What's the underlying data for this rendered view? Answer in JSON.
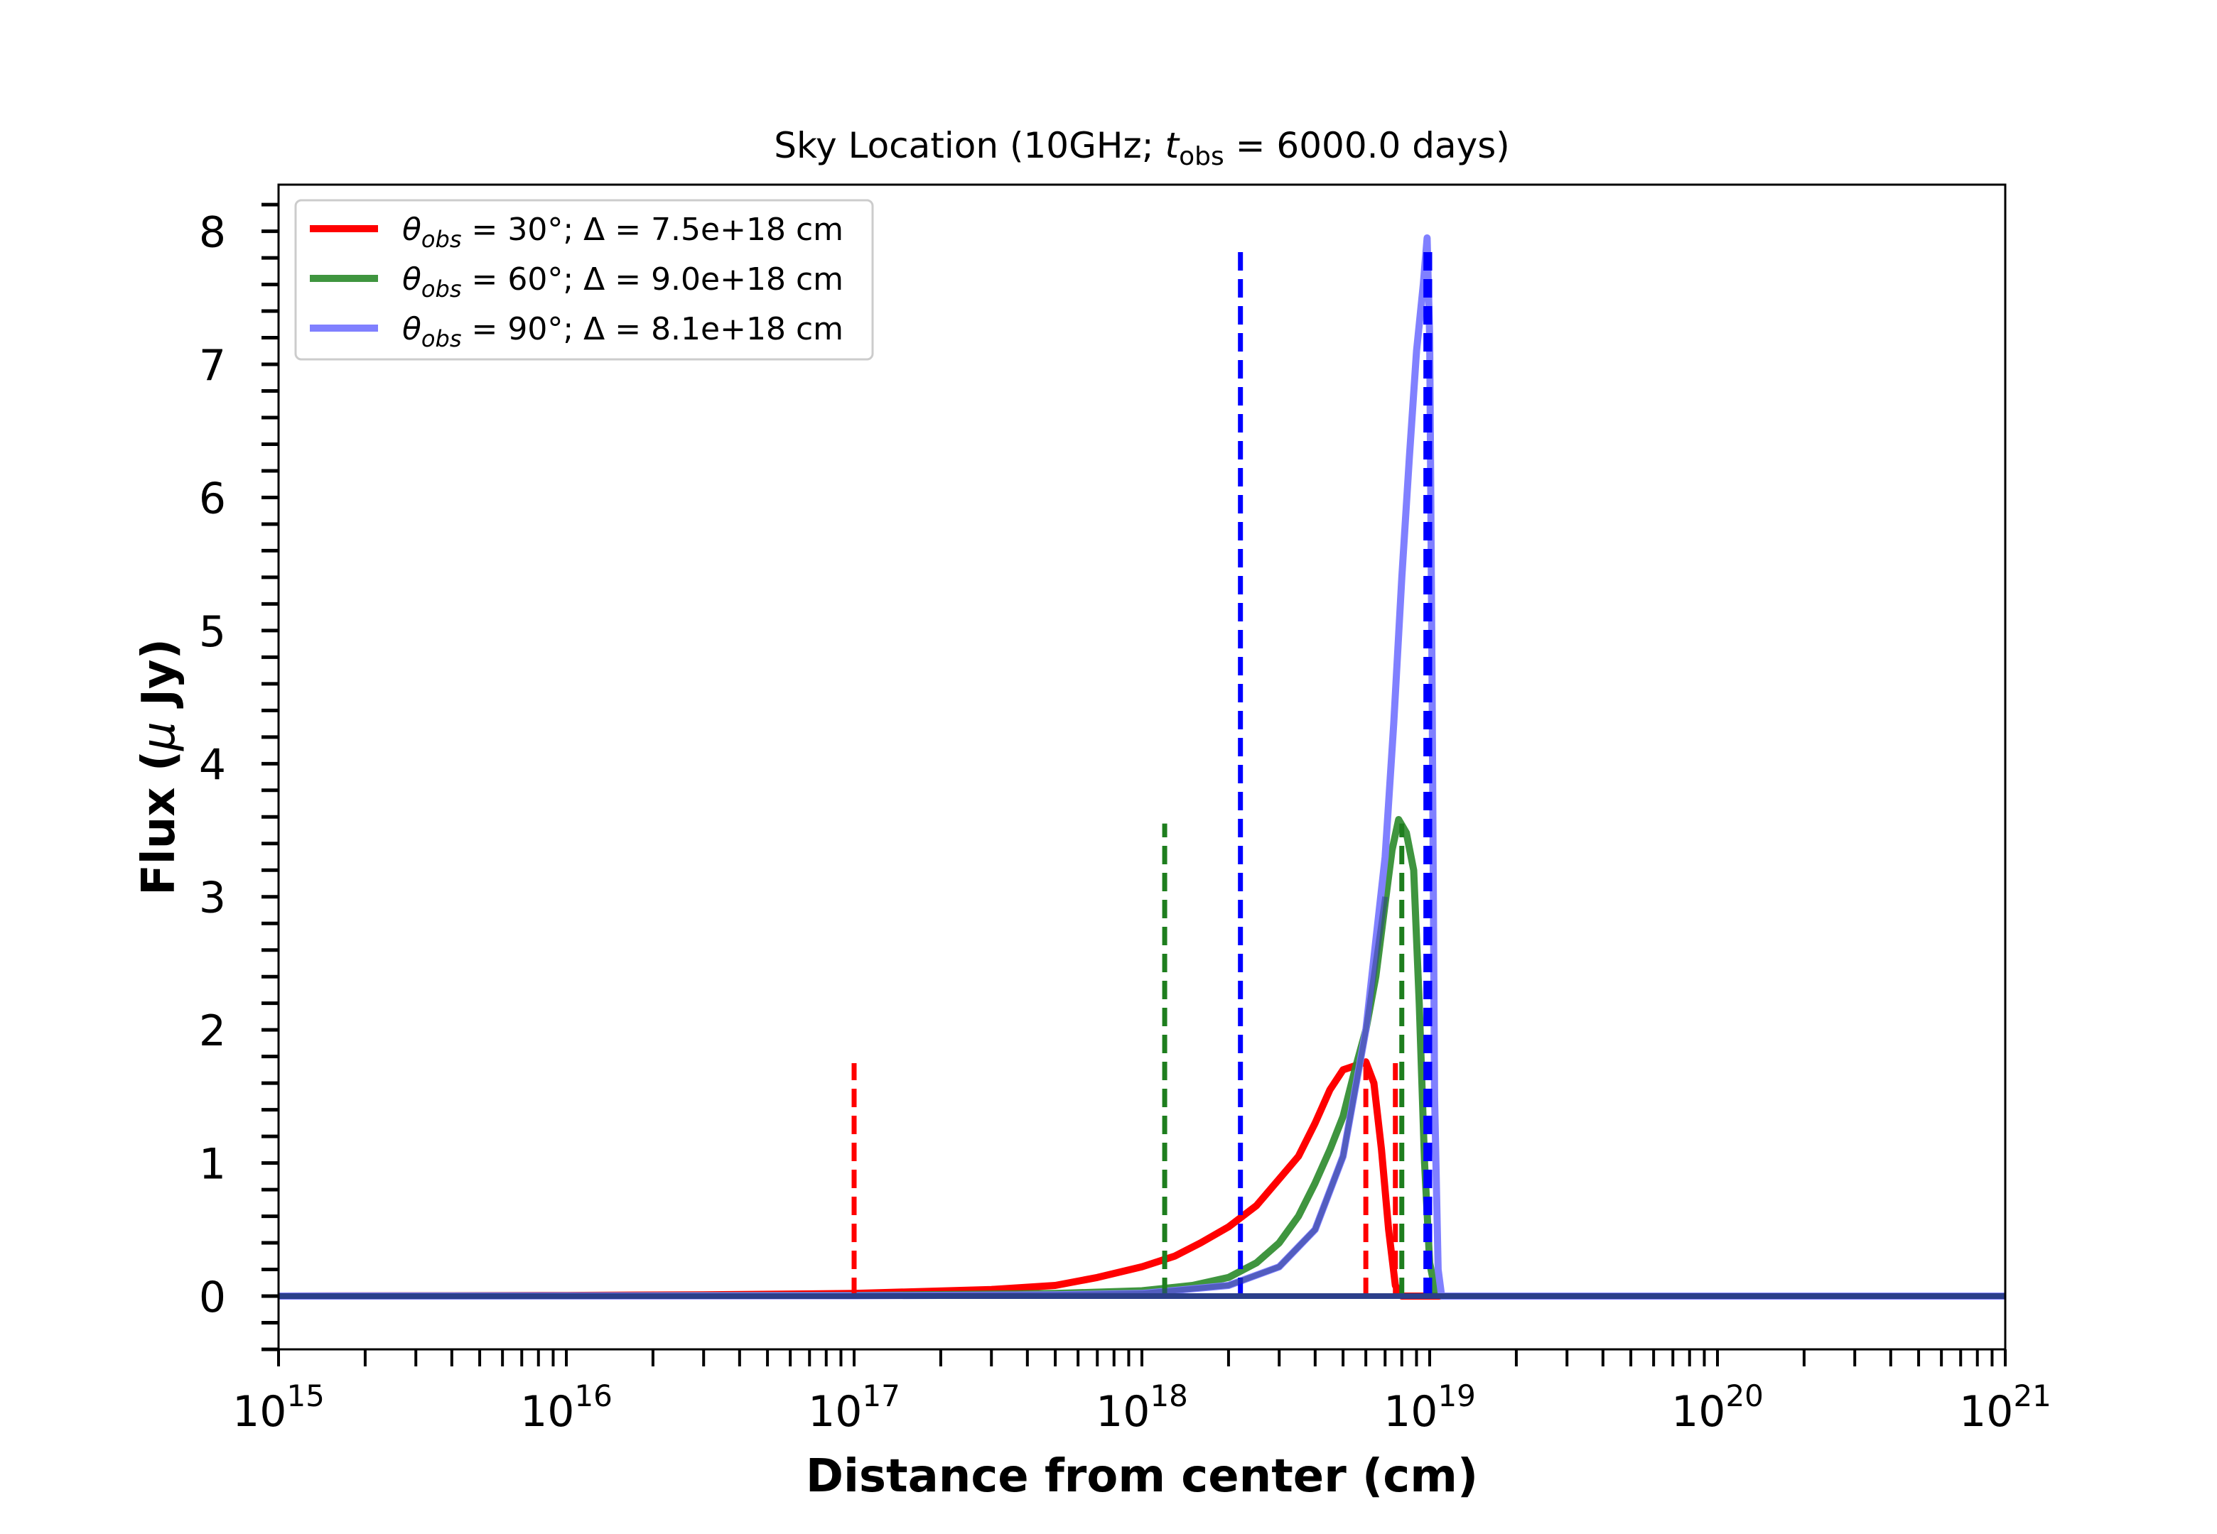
{
  "chart_data": {
    "type": "line",
    "title": "Sky Location (10GHz; t_obs = 6000.0 days)",
    "title_parts": {
      "pre": "Sky Location (10GHz; ",
      "t": "t",
      "sub": "obs",
      "post": " = 6000.0 days)"
    },
    "xlabel": "Distance from center (cm)",
    "ylabel": "Flux (μ Jy)",
    "ylabel_parts": {
      "pre": "Flux (",
      "mu": "μ",
      "post": " Jy)"
    },
    "xscale": "log",
    "xlim": [
      1000000000000000.0,
      1e+21
    ],
    "ylim": [
      -0.4,
      8.35
    ],
    "x_ticks": [
      {
        "value": 1000000000000000.0,
        "base": "10",
        "exp": "15"
      },
      {
        "value": 1e+16,
        "base": "10",
        "exp": "16"
      },
      {
        "value": 1e+17,
        "base": "10",
        "exp": "17"
      },
      {
        "value": 1e+18,
        "base": "10",
        "exp": "18"
      },
      {
        "value": 1e+19,
        "base": "10",
        "exp": "19"
      },
      {
        "value": 1e+20,
        "base": "10",
        "exp": "20"
      },
      {
        "value": 1e+21,
        "base": "10",
        "exp": "21"
      }
    ],
    "y_ticks": [
      "0",
      "1",
      "2",
      "3",
      "4",
      "5",
      "6",
      "7",
      "8"
    ],
    "y_minor_step": 0.2,
    "grid": false,
    "legend_position": "top-left",
    "series": [
      {
        "name": "θ_obs = 30°; Δ = 7.5e+18 cm",
        "legend": {
          "theta": "θ",
          "sub": "obs",
          "rest": " = 30°; Δ = 7.5e+18 cm"
        },
        "color": "#ff0000",
        "opacity": 1.0,
        "points": [
          [
            1000000000000000.0,
            0
          ],
          [
            1e+16,
            0.005
          ],
          [
            3e+16,
            0.01
          ],
          [
            1e+17,
            0.02
          ],
          [
            3e+17,
            0.05
          ],
          [
            5e+17,
            0.08
          ],
          [
            7e+17,
            0.14
          ],
          [
            1e+18,
            0.22
          ],
          [
            1.3e+18,
            0.3
          ],
          [
            1.6e+18,
            0.4
          ],
          [
            2e+18,
            0.52
          ],
          [
            2.5e+18,
            0.68
          ],
          [
            3e+18,
            0.88
          ],
          [
            3.5e+18,
            1.05
          ],
          [
            4e+18,
            1.3
          ],
          [
            4.5e+18,
            1.55
          ],
          [
            5e+18,
            1.7
          ],
          [
            5.5e+18,
            1.73
          ],
          [
            6e+18,
            1.76
          ],
          [
            6.4e+18,
            1.6
          ],
          [
            6.8e+18,
            1.1
          ],
          [
            7.2e+18,
            0.5
          ],
          [
            7.6e+18,
            0.08
          ],
          [
            8e+18,
            0.0
          ],
          [
            1.1e+19,
            0
          ],
          [
            1e+20,
            0
          ],
          [
            1e+21,
            0
          ]
        ],
        "markers": [
          1e+17,
          6e+18,
          7.6e+18
        ],
        "marker_height": 1.75
      },
      {
        "name": "θ_obs = 60°; Δ = 9.0e+18 cm",
        "legend": {
          "theta": "θ",
          "sub": "obs",
          "rest": " = 60°; Δ = 9.0e+18 cm"
        },
        "color": "#2a8a2a",
        "opacity": 0.9,
        "points": [
          [
            1000000000000000.0,
            0
          ],
          [
            1e+17,
            0.005
          ],
          [
            5e+17,
            0.02
          ],
          [
            1e+18,
            0.04
          ],
          [
            1.5e+18,
            0.08
          ],
          [
            2e+18,
            0.14
          ],
          [
            2.5e+18,
            0.25
          ],
          [
            3e+18,
            0.4
          ],
          [
            3.5e+18,
            0.6
          ],
          [
            4e+18,
            0.85
          ],
          [
            4.5e+18,
            1.1
          ],
          [
            5e+18,
            1.35
          ],
          [
            5.5e+18,
            1.7
          ],
          [
            6e+18,
            2.0
          ],
          [
            6.5e+18,
            2.4
          ],
          [
            7e+18,
            2.95
          ],
          [
            7.4e+18,
            3.35
          ],
          [
            7.8e+18,
            3.58
          ],
          [
            8.3e+18,
            3.48
          ],
          [
            8.8e+18,
            3.2
          ],
          [
            9.2e+18,
            2.2
          ],
          [
            9.6e+18,
            1.0
          ],
          [
            1e+19,
            0.25
          ],
          [
            1.05e+19,
            0.02
          ],
          [
            1.1e+19,
            0
          ],
          [
            1e+20,
            0
          ],
          [
            1e+21,
            0
          ]
        ],
        "markers": [
          1.2e+18,
          8e+18
        ],
        "marker_height": 3.55
      },
      {
        "name": "θ_obs = 90°; Δ = 8.1e+18 cm",
        "legend": {
          "theta": "θ",
          "sub": "obs",
          "rest": " = 90°; Δ = 8.1e+18 cm"
        },
        "color": "#8080ff",
        "opacity": 1.0,
        "points": [
          [
            1000000000000000.0,
            0
          ],
          [
            1e+17,
            0.003
          ],
          [
            5e+17,
            0.01
          ],
          [
            1e+18,
            0.02
          ],
          [
            2e+18,
            0.08
          ],
          [
            3e+18,
            0.22
          ],
          [
            4e+18,
            0.5
          ],
          [
            5e+18,
            1.05
          ],
          [
            6e+18,
            2.0
          ],
          [
            7e+18,
            3.3
          ],
          [
            7.5e+18,
            4.3
          ],
          [
            8e+18,
            5.4
          ],
          [
            8.5e+18,
            6.3
          ],
          [
            9e+18,
            7.1
          ],
          [
            9.5e+18,
            7.6
          ],
          [
            9.8e+18,
            7.95
          ],
          [
            1e+19,
            7.2
          ],
          [
            1.02e+19,
            4.5
          ],
          [
            1.04e+19,
            1.5
          ],
          [
            1.07e+19,
            0.2
          ],
          [
            1.1e+19,
            0
          ],
          [
            1e+20,
            0
          ],
          [
            1e+21,
            0
          ]
        ],
        "markers": [
          2.2e+18,
          9.7e+18,
          1e+19
        ],
        "marker_height": 7.9
      }
    ],
    "marker_colors": {
      "red": "#ff0000",
      "green": "#1e7e1e",
      "blue": "#0000ff"
    },
    "overlay_color": "#2b3f8a"
  }
}
